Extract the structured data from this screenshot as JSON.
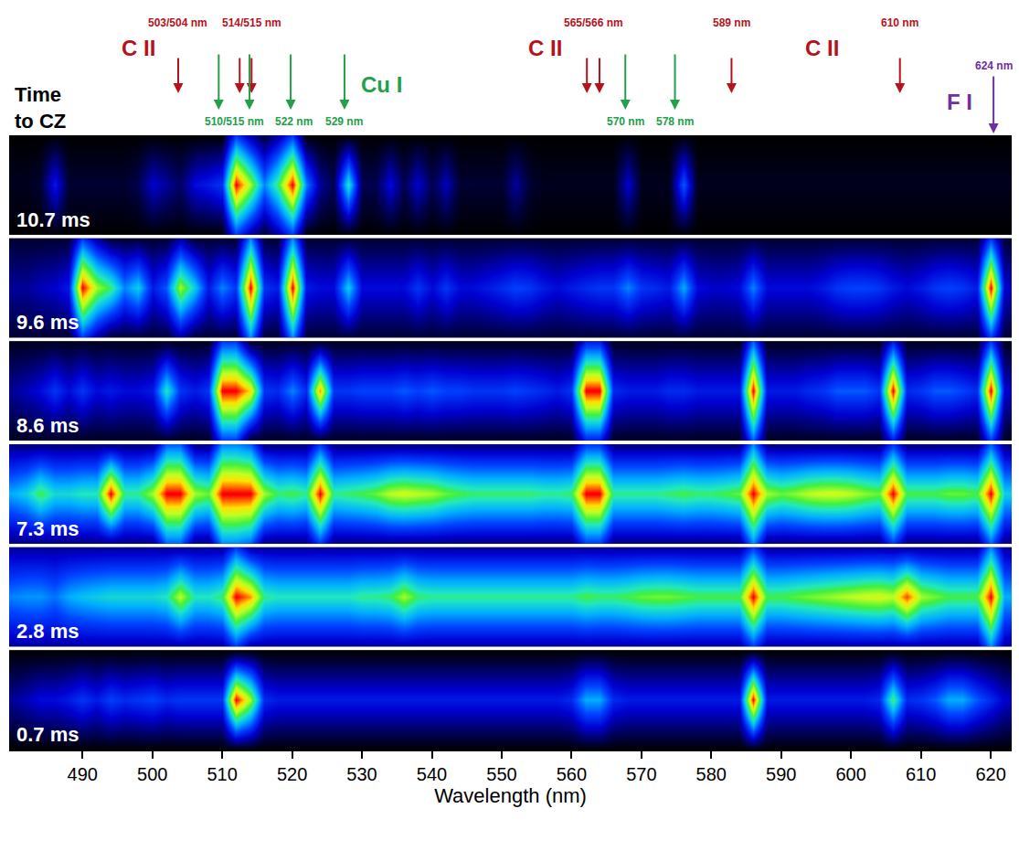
{
  "chart_data": {
    "type": "heatmap",
    "title": "Time to CZ",
    "xlabel": "Wavelength (nm)",
    "xlim": [
      479.5,
      623
    ],
    "xticks": [
      490,
      500,
      510,
      520,
      530,
      540,
      550,
      560,
      570,
      580,
      590,
      600,
      610,
      620
    ],
    "grid": false,
    "tick_labels": "x",
    "zlim": [
      0,
      100
    ],
    "x": [
      480,
      482,
      484,
      486,
      488,
      490,
      492,
      494,
      496,
      498,
      500,
      502,
      504,
      506,
      508,
      510,
      512,
      514,
      516,
      518,
      520,
      522,
      524,
      526,
      528,
      530,
      532,
      534,
      536,
      538,
      540,
      542,
      544,
      546,
      548,
      550,
      552,
      554,
      556,
      558,
      560,
      562,
      564,
      566,
      568,
      570,
      572,
      574,
      576,
      578,
      580,
      582,
      584,
      586,
      588,
      590,
      592,
      594,
      596,
      598,
      600,
      602,
      604,
      606,
      608,
      610,
      612,
      614,
      616,
      618,
      620,
      622
    ],
    "panels": [
      {
        "label": "10.7 ms",
        "center": [
          3,
          3,
          5,
          25,
          5,
          5,
          5,
          5,
          5,
          8,
          20,
          15,
          10,
          22,
          25,
          30,
          95,
          70,
          40,
          60,
          95,
          40,
          15,
          8,
          55,
          8,
          8,
          22,
          8,
          20,
          8,
          18,
          5,
          5,
          5,
          5,
          15,
          5,
          3,
          3,
          3,
          3,
          3,
          3,
          20,
          3,
          3,
          3,
          35,
          3,
          3,
          3,
          3,
          3,
          3,
          3,
          3,
          3,
          3,
          3,
          3,
          3,
          3,
          3,
          3,
          3,
          3,
          3,
          3,
          3,
          3,
          3
        ],
        "edge": [
          0,
          0,
          0,
          0,
          0,
          0,
          0,
          0,
          0,
          0,
          0,
          0,
          0,
          0,
          0,
          0,
          30,
          15,
          5,
          15,
          30,
          0,
          0,
          0,
          0,
          0,
          0,
          0,
          0,
          0,
          0,
          0,
          0,
          0,
          0,
          0,
          0,
          0,
          0,
          0,
          0,
          0,
          0,
          0,
          0,
          0,
          0,
          0,
          0,
          0,
          0,
          0,
          0,
          0,
          0,
          0,
          0,
          0,
          0,
          0,
          0,
          0,
          0,
          0,
          0,
          0,
          0,
          0,
          0,
          0,
          0,
          0
        ]
      },
      {
        "label": "9.6 ms",
        "center": [
          15,
          15,
          18,
          20,
          25,
          95,
          70,
          60,
          40,
          50,
          25,
          35,
          70,
          50,
          25,
          40,
          30,
          95,
          30,
          25,
          95,
          25,
          22,
          22,
          50,
          22,
          22,
          22,
          22,
          30,
          22,
          30,
          22,
          22,
          25,
          28,
          32,
          30,
          25,
          22,
          25,
          28,
          30,
          30,
          40,
          30,
          28,
          25,
          45,
          22,
          20,
          20,
          22,
          40,
          22,
          22,
          22,
          22,
          25,
          30,
          32,
          32,
          30,
          25,
          22,
          25,
          30,
          32,
          30,
          25,
          95,
          20
        ],
        "edge": [
          5,
          5,
          5,
          5,
          5,
          30,
          15,
          5,
          5,
          5,
          5,
          5,
          15,
          5,
          5,
          5,
          5,
          40,
          5,
          5,
          40,
          5,
          5,
          5,
          5,
          5,
          5,
          5,
          5,
          5,
          5,
          5,
          5,
          5,
          5,
          5,
          5,
          5,
          5,
          5,
          5,
          5,
          5,
          5,
          5,
          5,
          5,
          5,
          5,
          5,
          5,
          5,
          5,
          5,
          5,
          5,
          5,
          5,
          5,
          5,
          5,
          5,
          5,
          5,
          5,
          5,
          5,
          5,
          5,
          5,
          30,
          5
        ]
      },
      {
        "label": "8.6 ms",
        "center": [
          15,
          18,
          22,
          30,
          22,
          30,
          22,
          25,
          22,
          22,
          25,
          55,
          30,
          25,
          30,
          95,
          95,
          80,
          30,
          28,
          40,
          28,
          85,
          30,
          30,
          32,
          32,
          32,
          35,
          32,
          35,
          32,
          32,
          30,
          30,
          30,
          32,
          30,
          28,
          25,
          30,
          95,
          95,
          28,
          25,
          25,
          25,
          28,
          28,
          25,
          25,
          25,
          25,
          95,
          25,
          25,
          25,
          28,
          30,
          35,
          35,
          35,
          30,
          95,
          28,
          30,
          35,
          35,
          32,
          28,
          95,
          20
        ],
        "edge": [
          3,
          3,
          3,
          3,
          3,
          3,
          3,
          3,
          3,
          3,
          3,
          3,
          3,
          3,
          3,
          30,
          30,
          3,
          3,
          3,
          3,
          3,
          3,
          3,
          3,
          3,
          3,
          3,
          3,
          3,
          3,
          3,
          3,
          3,
          3,
          3,
          3,
          3,
          3,
          3,
          3,
          25,
          25,
          3,
          3,
          3,
          3,
          3,
          3,
          3,
          3,
          3,
          3,
          35,
          3,
          3,
          3,
          3,
          3,
          3,
          3,
          3,
          3,
          25,
          3,
          3,
          3,
          3,
          3,
          3,
          30,
          3
        ]
      },
      {
        "label": "7.3 ms",
        "center": [
          45,
          50,
          62,
          52,
          52,
          55,
          55,
          95,
          58,
          58,
          70,
          95,
          95,
          70,
          65,
          95,
          95,
          95,
          70,
          60,
          62,
          58,
          95,
          58,
          60,
          62,
          65,
          72,
          74,
          72,
          70,
          65,
          62,
          60,
          60,
          60,
          60,
          60,
          58,
          58,
          60,
          95,
          95,
          58,
          58,
          58,
          58,
          60,
          62,
          60,
          60,
          62,
          65,
          95,
          70,
          65,
          68,
          72,
          74,
          74,
          72,
          68,
          65,
          95,
          62,
          62,
          62,
          65,
          65,
          62,
          95,
          50
        ],
        "edge": [
          12,
          12,
          12,
          12,
          12,
          12,
          12,
          12,
          12,
          12,
          12,
          35,
          35,
          12,
          12,
          40,
          40,
          35,
          12,
          12,
          12,
          12,
          30,
          12,
          12,
          12,
          12,
          12,
          12,
          12,
          12,
          12,
          12,
          12,
          12,
          12,
          12,
          12,
          12,
          12,
          12,
          30,
          30,
          12,
          12,
          12,
          12,
          12,
          12,
          12,
          12,
          12,
          12,
          40,
          12,
          12,
          12,
          12,
          12,
          12,
          12,
          12,
          12,
          30,
          12,
          12,
          12,
          12,
          12,
          12,
          35,
          12
        ]
      },
      {
        "label": "2.8 ms",
        "center": [
          40,
          42,
          42,
          38,
          45,
          48,
          50,
          52,
          52,
          52,
          52,
          55,
          72,
          55,
          55,
          60,
          95,
          85,
          58,
          55,
          55,
          55,
          55,
          55,
          55,
          58,
          58,
          60,
          70,
          60,
          58,
          58,
          58,
          58,
          58,
          58,
          58,
          58,
          58,
          58,
          58,
          62,
          60,
          60,
          62,
          65,
          66,
          66,
          64,
          62,
          62,
          62,
          62,
          95,
          62,
          62,
          64,
          66,
          68,
          70,
          72,
          74,
          75,
          72,
          90,
          70,
          66,
          62,
          62,
          62,
          95,
          45
        ],
        "edge": [
          15,
          15,
          15,
          15,
          15,
          15,
          15,
          15,
          15,
          15,
          15,
          15,
          15,
          15,
          15,
          15,
          30,
          15,
          15,
          15,
          15,
          15,
          15,
          15,
          15,
          15,
          15,
          15,
          15,
          15,
          15,
          15,
          15,
          15,
          15,
          15,
          15,
          15,
          15,
          15,
          15,
          15,
          15,
          15,
          15,
          15,
          15,
          15,
          15,
          15,
          15,
          15,
          15,
          30,
          15,
          15,
          15,
          15,
          15,
          15,
          15,
          15,
          15,
          15,
          15,
          15,
          15,
          15,
          15,
          15,
          40,
          15
        ]
      },
      {
        "label": "0.7 ms",
        "center": [
          15,
          18,
          22,
          22,
          25,
          30,
          25,
          32,
          28,
          30,
          32,
          28,
          30,
          30,
          30,
          30,
          95,
          70,
          28,
          25,
          25,
          25,
          25,
          25,
          25,
          25,
          25,
          25,
          25,
          25,
          25,
          25,
          25,
          25,
          25,
          25,
          25,
          25,
          25,
          25,
          28,
          45,
          45,
          28,
          25,
          25,
          25,
          25,
          25,
          25,
          25,
          25,
          25,
          95,
          25,
          25,
          25,
          25,
          25,
          25,
          25,
          25,
          28,
          60,
          28,
          30,
          35,
          45,
          45,
          35,
          28,
          20
        ],
        "edge": [
          0,
          0,
          0,
          0,
          0,
          0,
          0,
          0,
          0,
          0,
          0,
          0,
          0,
          0,
          0,
          0,
          0,
          0,
          0,
          0,
          0,
          0,
          0,
          0,
          0,
          0,
          0,
          0,
          0,
          0,
          0,
          0,
          0,
          0,
          0,
          0,
          0,
          0,
          0,
          0,
          0,
          0,
          0,
          0,
          0,
          0,
          0,
          0,
          0,
          0,
          0,
          0,
          0,
          0,
          0,
          0,
          0,
          0,
          0,
          0,
          0,
          0,
          0,
          0,
          0,
          0,
          0,
          0,
          0,
          0,
          0,
          0
        ]
      }
    ],
    "species": [
      {
        "name": "C II",
        "color": "#b5121b",
        "name_x": [
          498.0,
          556.2,
          595.9
        ],
        "lines": [
          {
            "label": "503/504 nm",
            "x": [
              503.7
            ]
          },
          {
            "label": "514/515 nm",
            "x": [
              512.5,
              514.2
            ]
          },
          {
            "label": "565/566 nm",
            "x": [
              562.2,
              564.0
            ]
          },
          {
            "label": "589 nm",
            "x": [
              582.9
            ]
          },
          {
            "label": "610 nm",
            "x": [
              607.0
            ]
          }
        ]
      },
      {
        "name": "Cu I",
        "color": "#22a04a",
        "name_x": [
          532.8
        ],
        "lines": [
          {
            "label": "510/515 nm",
            "x": [
              509.5,
              513.9
            ]
          },
          {
            "label": "522 nm",
            "x": [
              519.8
            ]
          },
          {
            "label": "529 nm",
            "x": [
              527.5
            ]
          },
          {
            "label": "570 nm",
            "x": [
              567.7
            ]
          },
          {
            "label": "578 nm",
            "x": [
              574.8
            ]
          }
        ]
      },
      {
        "name": "F I",
        "color": "#7030a0",
        "name_x": [
          615.5
        ],
        "lines": [
          {
            "label": "624 nm",
            "x": [
              620.4
            ]
          }
        ]
      }
    ]
  }
}
